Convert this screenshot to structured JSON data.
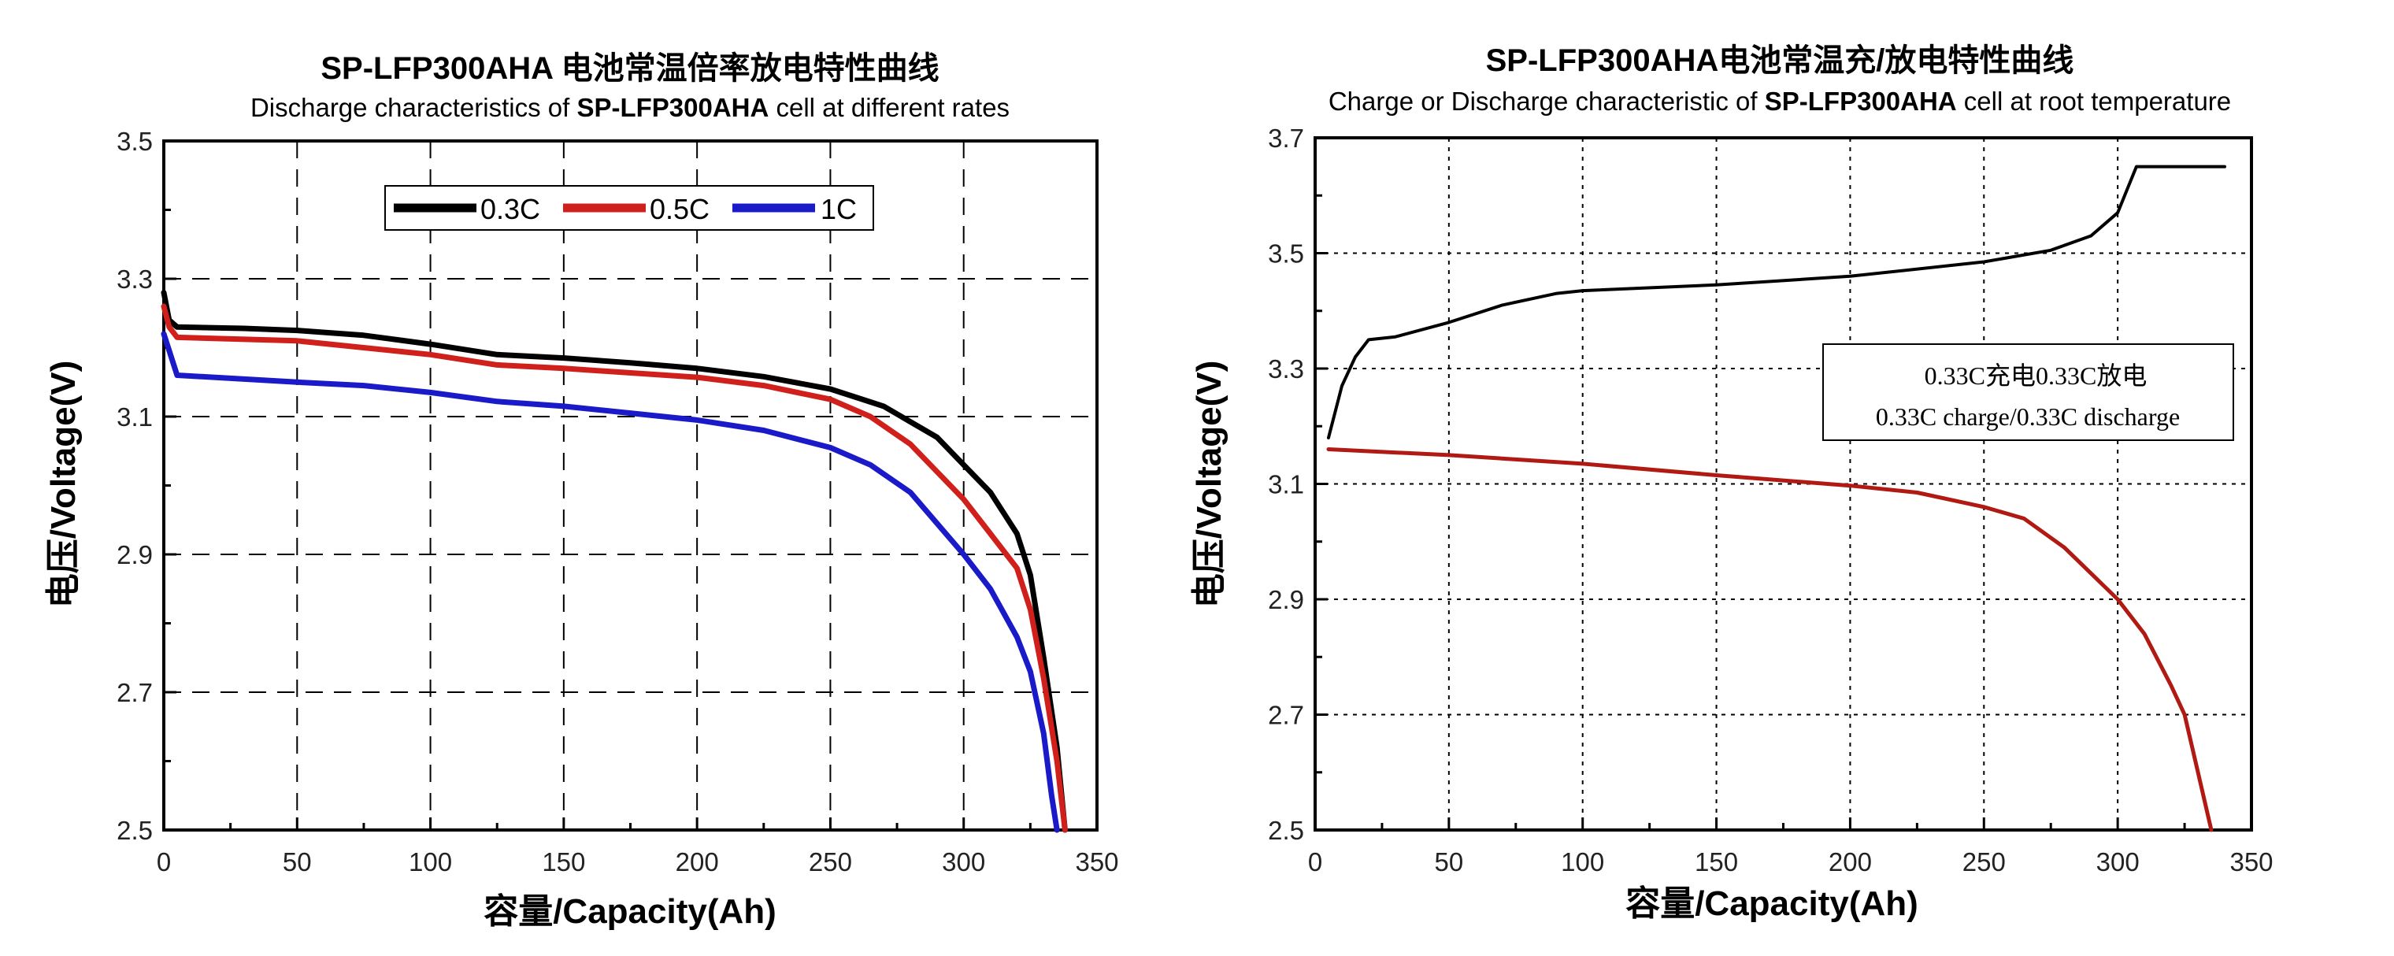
{
  "chart_data": [
    {
      "type": "line",
      "title": "SP-LFP300AHA 电池常温倍率放电特性曲线",
      "subtitle_parts": [
        {
          "text": "Discharge characteristics of ",
          "bold": false
        },
        {
          "text": "SP-LFP300AHA",
          "bold": true
        },
        {
          "text": " cell at different rates",
          "bold": false
        }
      ],
      "xlabel": "容量/Capacity(Ah)",
      "ylabel": "电压/Voltage(V)",
      "xlim": [
        0,
        350
      ],
      "ylim": [
        2.5,
        3.5
      ],
      "xticks": [
        "0",
        "50",
        "100",
        "150",
        "200",
        "250",
        "300",
        "350"
      ],
      "yticks": [
        "2.5",
        "2.7",
        "2.9",
        "3.1",
        "3.3",
        "3.5"
      ],
      "grid": "dashed",
      "legend": "top-center",
      "series": [
        {
          "name": "0.3C",
          "color": "#000000",
          "x": [
            0,
            2,
            5,
            30,
            50,
            75,
            100,
            125,
            150,
            175,
            200,
            225,
            250,
            270,
            290,
            300,
            310,
            320,
            325,
            330,
            335,
            338
          ],
          "y": [
            3.28,
            3.24,
            3.23,
            3.228,
            3.225,
            3.218,
            3.205,
            3.19,
            3.185,
            3.178,
            3.17,
            3.158,
            3.14,
            3.115,
            3.07,
            3.03,
            2.99,
            2.93,
            2.87,
            2.75,
            2.62,
            2.5
          ]
        },
        {
          "name": "0.5C",
          "color": "#d0201c",
          "x": [
            0,
            2,
            5,
            50,
            100,
            125,
            150,
            200,
            225,
            250,
            265,
            280,
            300,
            310,
            320,
            325,
            330,
            335,
            338
          ],
          "y": [
            3.26,
            3.23,
            3.215,
            3.21,
            3.19,
            3.175,
            3.17,
            3.157,
            3.145,
            3.125,
            3.1,
            3.06,
            2.98,
            2.93,
            2.88,
            2.82,
            2.72,
            2.6,
            2.5
          ]
        },
        {
          "name": "1C",
          "color": "#1a1ac8",
          "x": [
            0,
            5,
            50,
            75,
            100,
            125,
            150,
            175,
            200,
            225,
            250,
            265,
            280,
            300,
            310,
            320,
            325,
            330,
            333,
            335
          ],
          "y": [
            3.22,
            3.16,
            3.15,
            3.145,
            3.135,
            3.122,
            3.115,
            3.105,
            3.095,
            3.08,
            3.055,
            3.03,
            2.99,
            2.9,
            2.85,
            2.78,
            2.73,
            2.64,
            2.55,
            2.5
          ]
        }
      ]
    },
    {
      "type": "line",
      "title": "SP-LFP300AHA电池常温充/放电特性曲线",
      "subtitle_parts": [
        {
          "text": "Charge or Discharge characteristic of ",
          "bold": false
        },
        {
          "text": "SP-LFP300AHA",
          "bold": true
        },
        {
          "text": " cell at root temperature",
          "bold": false
        }
      ],
      "xlabel": "容量/Capacity(Ah)",
      "ylabel": "电压/Voltage(V)",
      "xlim": [
        0,
        350
      ],
      "ylim": [
        2.5,
        3.7
      ],
      "xticks": [
        "0",
        "50",
        "100",
        "150",
        "200",
        "250",
        "300",
        "350"
      ],
      "yticks": [
        "2.5",
        "2.7",
        "2.9",
        "3.1",
        "3.3",
        "3.5",
        "3.7"
      ],
      "grid": "dotted",
      "legend_text": [
        "0.33C充电0.33C放电",
        "0.33C charge/0.33C discharge"
      ],
      "series": [
        {
          "color": "#000000",
          "x": [
            5,
            10,
            15,
            20,
            30,
            50,
            70,
            90,
            100,
            150,
            200,
            250,
            275,
            290,
            300,
            307,
            340
          ],
          "y": [
            3.18,
            3.27,
            3.32,
            3.35,
            3.355,
            3.38,
            3.41,
            3.43,
            3.435,
            3.445,
            3.46,
            3.485,
            3.505,
            3.53,
            3.57,
            3.65,
            3.65
          ]
        },
        {
          "color": "#b01a12",
          "x": [
            5,
            50,
            100,
            150,
            200,
            225,
            250,
            265,
            280,
            300,
            310,
            320,
            325,
            330,
            335
          ],
          "y": [
            3.16,
            3.15,
            3.135,
            3.115,
            3.097,
            3.085,
            3.06,
            3.04,
            2.99,
            2.9,
            2.84,
            2.75,
            2.7,
            2.6,
            2.5
          ]
        }
      ]
    }
  ]
}
